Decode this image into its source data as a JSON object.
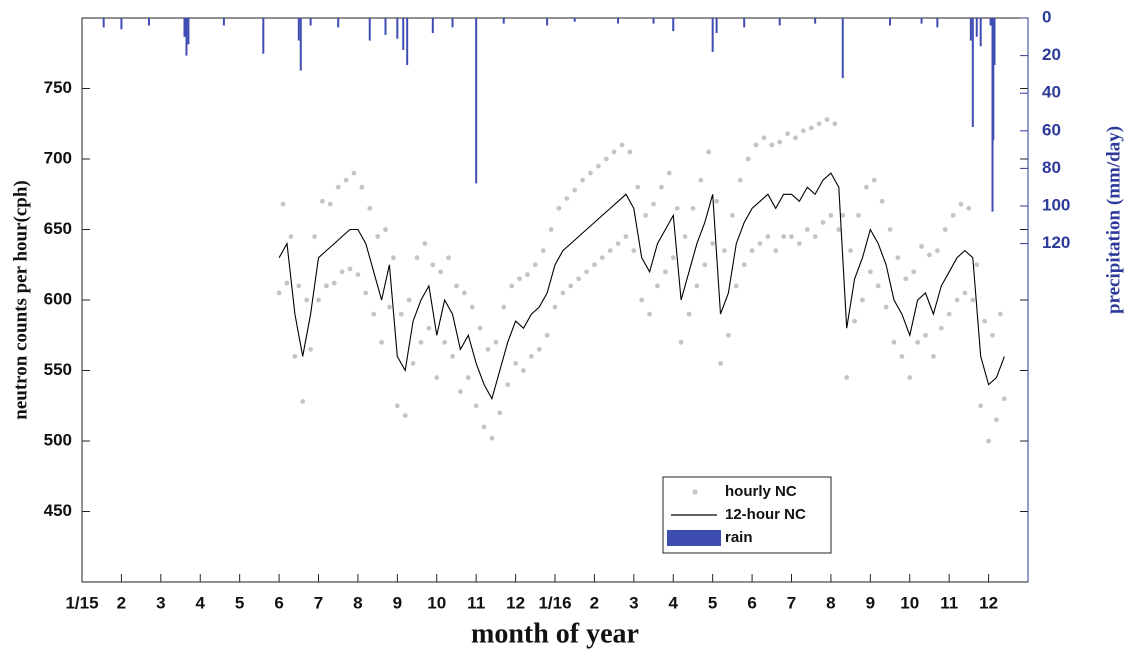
{
  "chart_data": {
    "type": "line",
    "x_label": "month of year",
    "y_label": "neutron counts per hour(cph)",
    "y2_label": "precipitation (mm/day)",
    "xlim": [
      0,
      24
    ],
    "xticks": [
      {
        "value": 0,
        "label": "1/15"
      },
      {
        "value": 1,
        "label": "2"
      },
      {
        "value": 2,
        "label": "3"
      },
      {
        "value": 3,
        "label": "4"
      },
      {
        "value": 4,
        "label": "5"
      },
      {
        "value": 5,
        "label": "6"
      },
      {
        "value": 6,
        "label": "7"
      },
      {
        "value": 7,
        "label": "8"
      },
      {
        "value": 8,
        "label": "9"
      },
      {
        "value": 9,
        "label": "10"
      },
      {
        "value": 10,
        "label": "11"
      },
      {
        "value": 11,
        "label": "12"
      },
      {
        "value": 12,
        "label": "1/16"
      },
      {
        "value": 13,
        "label": "2"
      },
      {
        "value": 14,
        "label": "3"
      },
      {
        "value": 15,
        "label": "4"
      },
      {
        "value": 16,
        "label": "5"
      },
      {
        "value": 17,
        "label": "6"
      },
      {
        "value": 18,
        "label": "7"
      },
      {
        "value": 19,
        "label": "8"
      },
      {
        "value": 20,
        "label": "9"
      },
      {
        "value": 21,
        "label": "10"
      },
      {
        "value": 22,
        "label": "11"
      },
      {
        "value": 23,
        "label": "12"
      }
    ],
    "ylim": [
      400,
      800
    ],
    "yticks": [
      450,
      500,
      550,
      600,
      650,
      700,
      750
    ],
    "y2lim": [
      0,
      300
    ],
    "y2ticks": [
      0,
      20,
      40,
      60,
      80,
      100,
      120
    ],
    "y2_reversed": true,
    "legend": "bottom",
    "series": [
      {
        "name": "hourly NC",
        "type": "scatter",
        "color": "#c4c4c4",
        "x": [
          5.0,
          5.1,
          5.2,
          5.3,
          5.4,
          5.5,
          5.6,
          5.7,
          5.8,
          5.9,
          6.0,
          6.1,
          6.2,
          6.3,
          6.4,
          6.5,
          6.6,
          6.7,
          6.8,
          6.9,
          7.0,
          7.1,
          7.2,
          7.3,
          7.4,
          7.5,
          7.6,
          7.7,
          7.8,
          7.9,
          8.0,
          8.1,
          8.2,
          8.3,
          8.4,
          8.5,
          8.6,
          8.7,
          8.8,
          8.9,
          9.0,
          9.1,
          9.2,
          9.3,
          9.4,
          9.5,
          9.6,
          9.7,
          9.8,
          9.9,
          10.0,
          10.1,
          10.2,
          10.3,
          10.4,
          10.5,
          10.6,
          10.7,
          10.8,
          10.9,
          11.0,
          11.1,
          11.2,
          11.3,
          11.4,
          11.5,
          11.6,
          11.7,
          11.8,
          11.9,
          12.0,
          12.1,
          12.2,
          12.3,
          12.4,
          12.5,
          12.6,
          12.7,
          12.8,
          12.9,
          13.0,
          13.1,
          13.2,
          13.3,
          13.4,
          13.5,
          13.6,
          13.7,
          13.8,
          13.9,
          14.0,
          14.1,
          14.2,
          14.3,
          14.4,
          14.5,
          14.6,
          14.7,
          14.8,
          14.9,
          15.0,
          15.1,
          15.2,
          15.3,
          15.4,
          15.5,
          15.6,
          15.7,
          15.8,
          15.9,
          16.0,
          16.1,
          16.2,
          16.3,
          16.4,
          16.5,
          16.6,
          16.7,
          16.8,
          16.9,
          17.0,
          17.1,
          17.2,
          17.3,
          17.4,
          17.5,
          17.6,
          17.7,
          17.8,
          17.9,
          18.0,
          18.1,
          18.2,
          18.3,
          18.4,
          18.5,
          18.6,
          18.7,
          18.8,
          18.9,
          19.0,
          19.1,
          19.2,
          19.3,
          19.4,
          19.5,
          19.6,
          19.7,
          19.8,
          19.9,
          20.0,
          20.1,
          20.2,
          20.3,
          20.4,
          20.5,
          20.6,
          20.7,
          20.8,
          20.9,
          21.0,
          21.1,
          21.2,
          21.3,
          21.4,
          21.5,
          21.6,
          21.7,
          21.8,
          21.9,
          22.0,
          22.1,
          22.2,
          22.3,
          22.4,
          22.5,
          22.6,
          22.7,
          22.8,
          22.9,
          23.0,
          23.1,
          23.2,
          23.3,
          23.4
        ],
        "values": [
          605,
          668,
          612,
          645,
          560,
          610,
          528,
          600,
          565,
          645,
          600,
          670,
          610,
          668,
          612,
          680,
          620,
          685,
          622,
          690,
          618,
          680,
          605,
          665,
          590,
          645,
          570,
          650,
          595,
          630,
          525,
          590,
          518,
          600,
          555,
          630,
          570,
          640,
          580,
          625,
          545,
          620,
          570,
          630,
          560,
          610,
          535,
          605,
          545,
          595,
          525,
          580,
          510,
          565,
          502,
          570,
          520,
          595,
          540,
          610,
          555,
          615,
          550,
          618,
          560,
          625,
          565,
          635,
          575,
          650,
          595,
          665,
          605,
          672,
          610,
          678,
          615,
          685,
          620,
          690,
          625,
          695,
          630,
          700,
          635,
          705,
          640,
          710,
          645,
          705,
          635,
          680,
          600,
          660,
          590,
          668,
          610,
          680,
          620,
          690,
          630,
          665,
          570,
          645,
          590,
          665,
          610,
          685,
          625,
          705,
          640,
          670,
          555,
          635,
          575,
          660,
          610,
          685,
          625,
          700,
          635,
          710,
          640,
          715,
          645,
          710,
          635,
          712,
          645,
          718,
          645,
          715,
          640,
          720,
          650,
          722,
          645,
          725,
          655,
          728,
          660,
          725,
          650,
          660,
          545,
          635,
          585,
          660,
          600,
          680,
          620,
          685,
          610,
          670,
          595,
          650,
          570,
          630,
          560,
          615,
          545,
          620,
          570,
          638,
          575,
          632,
          560,
          635,
          580,
          650,
          590,
          660,
          600,
          668,
          605,
          665,
          600,
          625,
          525,
          585,
          500,
          575,
          515,
          590,
          530
        ]
      },
      {
        "name": "12-hour NC",
        "type": "line",
        "color": "#000000",
        "x": [
          5.0,
          5.2,
          5.4,
          5.6,
          5.8,
          6.0,
          6.2,
          6.4,
          6.6,
          6.8,
          7.0,
          7.2,
          7.4,
          7.6,
          7.8,
          8.0,
          8.2,
          8.4,
          8.6,
          8.8,
          9.0,
          9.2,
          9.4,
          9.6,
          9.8,
          10.0,
          10.2,
          10.4,
          10.6,
          10.8,
          11.0,
          11.2,
          11.4,
          11.6,
          11.8,
          12.0,
          12.2,
          12.4,
          12.6,
          12.8,
          13.0,
          13.2,
          13.4,
          13.6,
          13.8,
          14.0,
          14.2,
          14.4,
          14.6,
          14.8,
          15.0,
          15.2,
          15.4,
          15.6,
          15.8,
          16.0,
          16.2,
          16.4,
          16.6,
          16.8,
          17.0,
          17.2,
          17.4,
          17.6,
          17.8,
          18.0,
          18.2,
          18.4,
          18.6,
          18.8,
          19.0,
          19.2,
          19.4,
          19.6,
          19.8,
          20.0,
          20.2,
          20.4,
          20.6,
          20.8,
          21.0,
          21.2,
          21.4,
          21.6,
          21.8,
          22.0,
          22.2,
          22.4,
          22.6,
          22.8,
          23.0,
          23.2,
          23.4
        ],
        "values": [
          630,
          640,
          590,
          560,
          590,
          630,
          635,
          640,
          645,
          650,
          650,
          640,
          620,
          600,
          625,
          560,
          550,
          585,
          600,
          610,
          575,
          600,
          590,
          565,
          575,
          555,
          540,
          530,
          550,
          570,
          585,
          580,
          590,
          595,
          605,
          625,
          635,
          640,
          645,
          650,
          655,
          660,
          665,
          670,
          675,
          665,
          630,
          620,
          640,
          650,
          660,
          600,
          620,
          640,
          655,
          675,
          590,
          605,
          640,
          655,
          665,
          670,
          675,
          665,
          675,
          675,
          670,
          680,
          675,
          685,
          690,
          680,
          580,
          615,
          630,
          650,
          640,
          625,
          600,
          590,
          575,
          600,
          605,
          590,
          610,
          620,
          630,
          635,
          630,
          560,
          540,
          545,
          560
        ]
      },
      {
        "name": "rain",
        "type": "bar",
        "color": "#3f4db3",
        "axis": "y2",
        "x": [
          0.55,
          1.0,
          1.7,
          2.6,
          2.65,
          2.7,
          3.6,
          4.6,
          5.5,
          5.55,
          5.8,
          6.5,
          7.3,
          7.7,
          8.0,
          8.15,
          8.25,
          8.9,
          9.4,
          10.0,
          10.7,
          11.8,
          12.5,
          13.6,
          14.5,
          15.0,
          16.0,
          16.1,
          16.8,
          17.7,
          18.6,
          19.3,
          20.5,
          21.3,
          21.7,
          22.55,
          22.6,
          22.7,
          22.8,
          23.05,
          23.1,
          23.12,
          23.15
        ],
        "values": [
          5,
          6,
          4,
          10,
          20,
          14,
          4,
          19,
          12,
          28,
          4,
          5,
          12,
          9,
          11,
          17,
          25,
          8,
          5,
          88,
          3,
          4,
          2,
          3,
          3,
          7,
          18,
          8,
          5,
          4,
          3,
          32,
          4,
          3,
          5,
          12,
          58,
          10,
          15,
          4,
          103,
          65,
          25
        ]
      }
    ]
  }
}
